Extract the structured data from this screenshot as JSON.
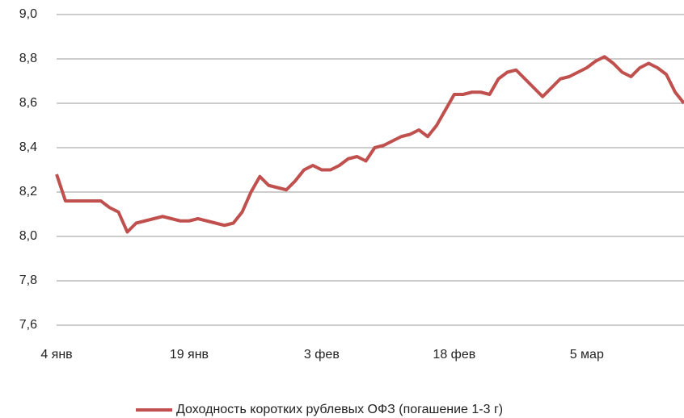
{
  "chart_data": {
    "type": "line",
    "categories": [
      "4 янв",
      null,
      null,
      null,
      null,
      null,
      null,
      null,
      null,
      null,
      null,
      null,
      null,
      null,
      null,
      "19 янв",
      null,
      null,
      null,
      null,
      null,
      null,
      null,
      null,
      null,
      null,
      null,
      null,
      null,
      null,
      "3 фев",
      null,
      null,
      null,
      null,
      null,
      null,
      null,
      null,
      null,
      null,
      null,
      null,
      null,
      null,
      "18 фев",
      null,
      null,
      null,
      null,
      null,
      null,
      null,
      null,
      null,
      null,
      null,
      null,
      null,
      null,
      "5 мар",
      null,
      null,
      null,
      null,
      null,
      null,
      null,
      null,
      null,
      null,
      null
    ],
    "series": [
      {
        "name": "Доходность коротких рублевых ОФЗ (погашение 1-3 г)",
        "color": "#c0504d",
        "values": [
          8.28,
          8.16,
          8.16,
          8.16,
          8.16,
          8.16,
          8.13,
          8.11,
          8.02,
          8.06,
          8.07,
          8.08,
          8.09,
          8.08,
          8.07,
          8.07,
          8.08,
          8.07,
          8.06,
          8.05,
          8.06,
          8.11,
          8.2,
          8.27,
          8.23,
          8.22,
          8.21,
          8.25,
          8.3,
          8.32,
          8.3,
          8.3,
          8.32,
          8.35,
          8.36,
          8.34,
          8.4,
          8.41,
          8.43,
          8.45,
          8.46,
          8.48,
          8.45,
          8.5,
          8.57,
          8.64,
          8.64,
          8.65,
          8.65,
          8.64,
          8.71,
          8.74,
          8.75,
          8.71,
          8.67,
          8.63,
          8.67,
          8.71,
          8.72,
          8.74,
          8.76,
          8.79,
          8.81,
          8.78,
          8.74,
          8.72,
          8.76,
          8.78,
          8.76,
          8.73,
          8.65,
          8.6
        ]
      }
    ],
    "ylim": [
      7.6,
      9.0
    ],
    "yticks": [
      {
        "value": 7.6,
        "label": "7,6"
      },
      {
        "value": 7.8,
        "label": "7,8"
      },
      {
        "value": 8.0,
        "label": "8,0"
      },
      {
        "value": 8.2,
        "label": "8,2"
      },
      {
        "value": 8.4,
        "label": "8,4"
      },
      {
        "value": 8.6,
        "label": "8,6"
      },
      {
        "value": 8.8,
        "label": "8,8"
      },
      {
        "value": 9.0,
        "label": "9,0"
      }
    ],
    "grid": true,
    "legend": "bottom"
  }
}
